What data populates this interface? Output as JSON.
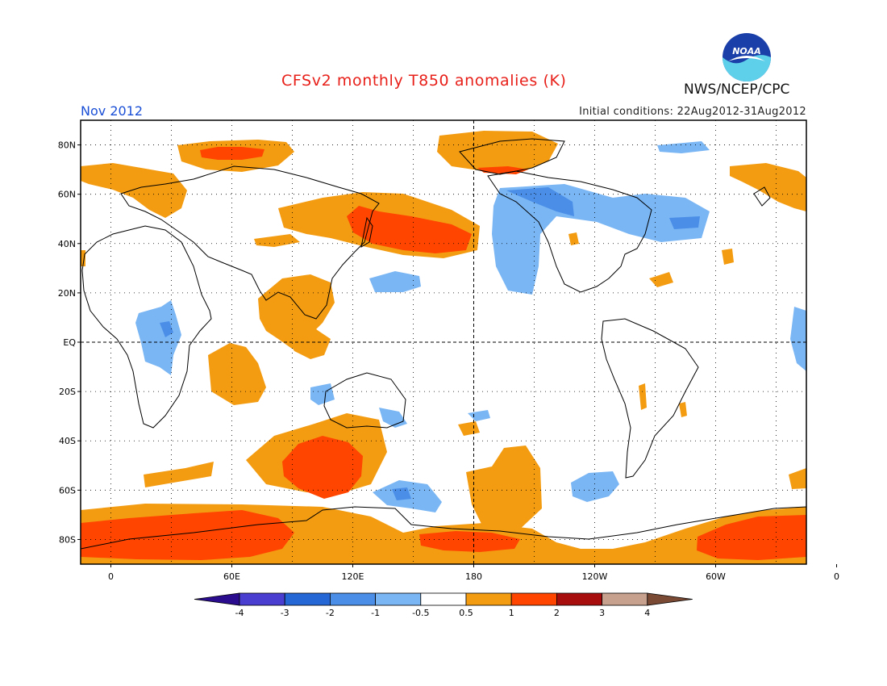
{
  "title": "CFSv2 monthly T850 anomalies (K)",
  "valid_period": "Nov 2012",
  "initial_conditions": "Initial conditions: 22Aug2012-31Aug2012",
  "agency": "NWS/NCEP/CPC",
  "logo_text": "NOAA",
  "map": {
    "lat_labels": [
      "80N",
      "60N",
      "40N",
      "20N",
      "EQ",
      "20S",
      "40S",
      "60S",
      "80S"
    ],
    "lon_labels": [
      "0",
      "60E",
      "120E",
      "180",
      "120W",
      "60W",
      "0"
    ],
    "lat_range": [
      -90,
      90
    ],
    "lon_range": [
      -15,
      345
    ]
  },
  "colorbar": {
    "ticks": [
      "-4",
      "-3",
      "-2",
      "-1",
      "-0.5",
      "0.5",
      "1",
      "2",
      "3",
      "4"
    ],
    "colors": [
      "#2a0c8f",
      "#4a3ed0",
      "#2667d6",
      "#4a8ee8",
      "#7ab6f4",
      "#ffffff",
      "#f39c12",
      "#ff4500",
      "#a80d0d",
      "#c8a08e",
      "#7a4a35"
    ]
  },
  "anomaly_colors": {
    "neg_1": "#7ab6f4",
    "neg_2": "#4a8ee8",
    "pos_1": "#f39c12",
    "pos_2": "#ff4500"
  }
}
